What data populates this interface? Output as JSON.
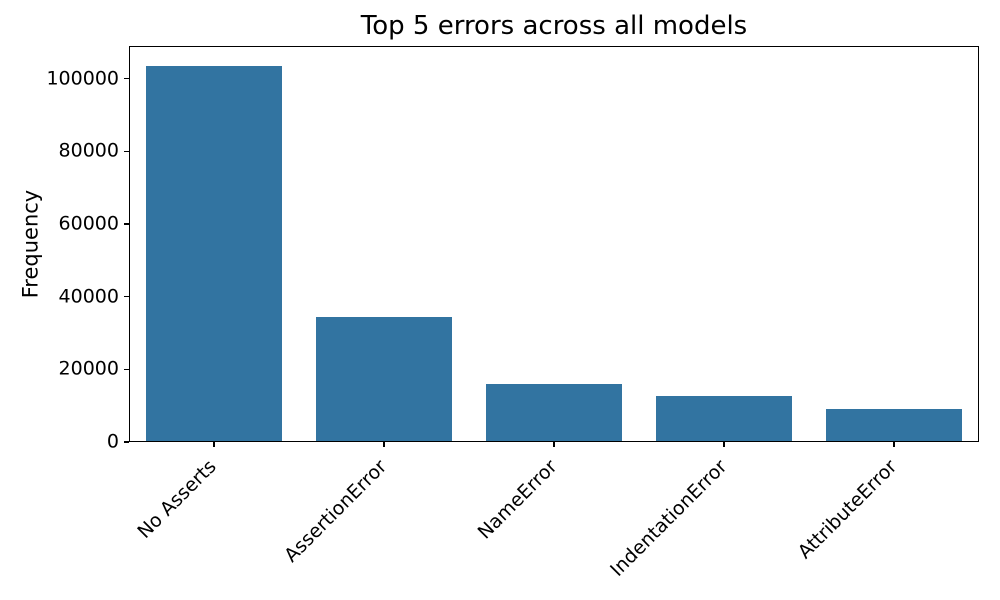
{
  "chart_data": {
    "type": "bar",
    "title": "Top 5 errors across all models",
    "xlabel": "",
    "ylabel": "Frequency",
    "categories": [
      "No Asserts",
      "AssertionError",
      "NameError",
      "IndentationError",
      "AttributeError"
    ],
    "values": [
      103500,
      34400,
      15900,
      12700,
      9200
    ],
    "yticks": [
      0,
      20000,
      40000,
      60000,
      80000,
      100000
    ],
    "ylim": [
      0,
      109000
    ],
    "bar_width_fraction": 0.8,
    "grid": false,
    "legend": "none",
    "x_label_rotation_deg": 45,
    "colors": {
      "bar": "#3274a1",
      "text": "#000000",
      "spine": "#000000",
      "background": "#ffffff"
    }
  }
}
